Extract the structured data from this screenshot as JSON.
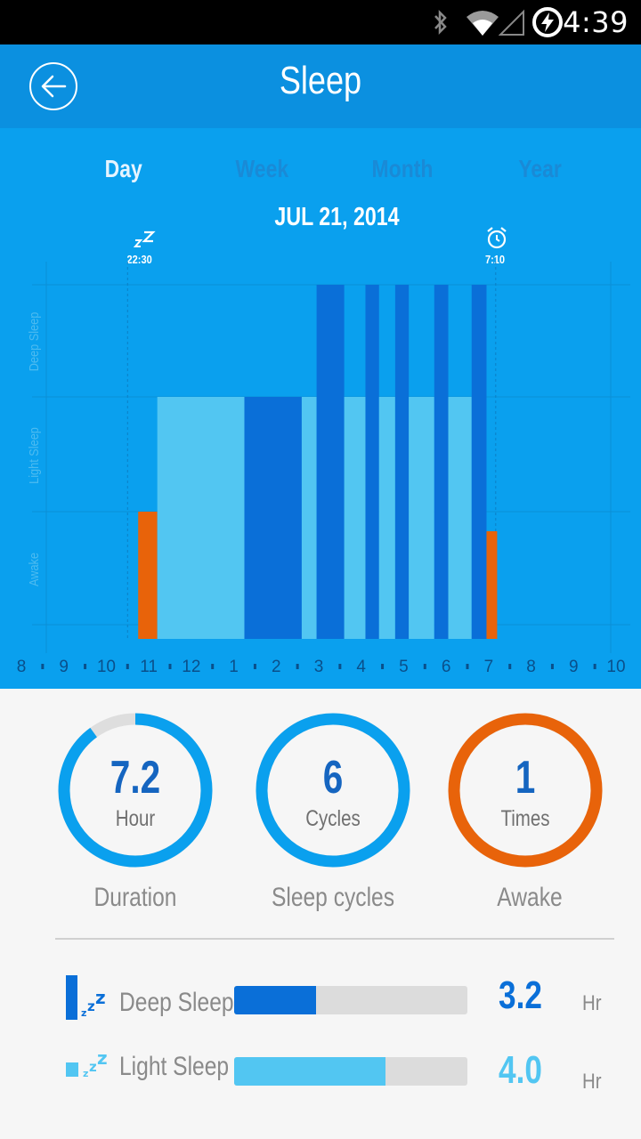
{
  "status_bar": {
    "time": "4:39",
    "icons": [
      "bluetooth-icon",
      "wifi-icon",
      "signal-icon",
      "battery-charging-icon"
    ]
  },
  "app_bar": {
    "title": "Sleep",
    "back_icon": "back-arrow-icon"
  },
  "tabs": [
    {
      "label": "Day",
      "active": true
    },
    {
      "label": "Week",
      "active": false
    },
    {
      "label": "Month",
      "active": false
    },
    {
      "label": "Year",
      "active": false
    }
  ],
  "date": "JUL 21, 2014",
  "markers": {
    "sleep_time": "22:30",
    "wake_time": "7:10",
    "sleep_icon": "zzz-icon",
    "wake_icon": "alarm-clock-icon"
  },
  "chart_data": {
    "type": "bar",
    "title": "",
    "y_categories": [
      "Awake",
      "Light Sleep",
      "Deep Sleep"
    ],
    "x_tick_labels": [
      "8",
      "9",
      "10",
      "11",
      "12",
      "1",
      "2",
      "3",
      "4",
      "5",
      "6",
      "7",
      "8",
      "9",
      "10"
    ],
    "x_range_hours": [
      20,
      34
    ],
    "sleep_start": "22:30",
    "wake_end": "7:10",
    "segments": [
      {
        "start": 22.75,
        "end": 23.2,
        "stage": "Awake"
      },
      {
        "start": 23.2,
        "end": 25.25,
        "stage": "Light Sleep"
      },
      {
        "start": 25.25,
        "end": 26.6,
        "stage": "Light Sleep",
        "shade": "dark"
      },
      {
        "start": 26.6,
        "end": 26.95,
        "stage": "Light Sleep"
      },
      {
        "start": 26.95,
        "end": 27.6,
        "stage": "Deep Sleep"
      },
      {
        "start": 27.6,
        "end": 28.1,
        "stage": "Light Sleep"
      },
      {
        "start": 28.1,
        "end": 28.42,
        "stage": "Deep Sleep"
      },
      {
        "start": 28.42,
        "end": 28.8,
        "stage": "Light Sleep"
      },
      {
        "start": 28.8,
        "end": 29.12,
        "stage": "Deep Sleep"
      },
      {
        "start": 29.12,
        "end": 29.72,
        "stage": "Light Sleep"
      },
      {
        "start": 29.72,
        "end": 30.05,
        "stage": "Deep Sleep"
      },
      {
        "start": 30.05,
        "end": 30.6,
        "stage": "Light Sleep"
      },
      {
        "start": 30.6,
        "end": 30.95,
        "stage": "Deep Sleep"
      },
      {
        "start": 30.95,
        "end": 31.2,
        "stage": "Awake"
      }
    ],
    "colors": {
      "awake": "#e8630a",
      "light": "#52c6f2",
      "deep": "#0a6fd8",
      "background": "#0aa0ee"
    }
  },
  "summary": {
    "duration": {
      "value": "7.2",
      "unit": "Hour",
      "caption": "Duration",
      "progress": 0.9,
      "color": "#0aa0ee"
    },
    "cycles": {
      "value": "6",
      "unit": "Cycles",
      "caption": "Sleep cycles",
      "progress": 1.0,
      "color": "#0aa0ee"
    },
    "awake": {
      "value": "1",
      "unit": "Times",
      "caption": "Awake",
      "progress": 1.0,
      "color": "#e8630a"
    }
  },
  "breakdown": [
    {
      "label": "Deep Sleep",
      "value": "3.2",
      "unit": "Hr",
      "fraction": 0.35,
      "color": "#0a6fd8",
      "icon": "deep-sleep-icon"
    },
    {
      "label": "Light Sleep",
      "value": "4.0",
      "unit": "Hr",
      "fraction": 0.65,
      "color": "#52c6f2",
      "icon": "light-sleep-icon"
    }
  ]
}
